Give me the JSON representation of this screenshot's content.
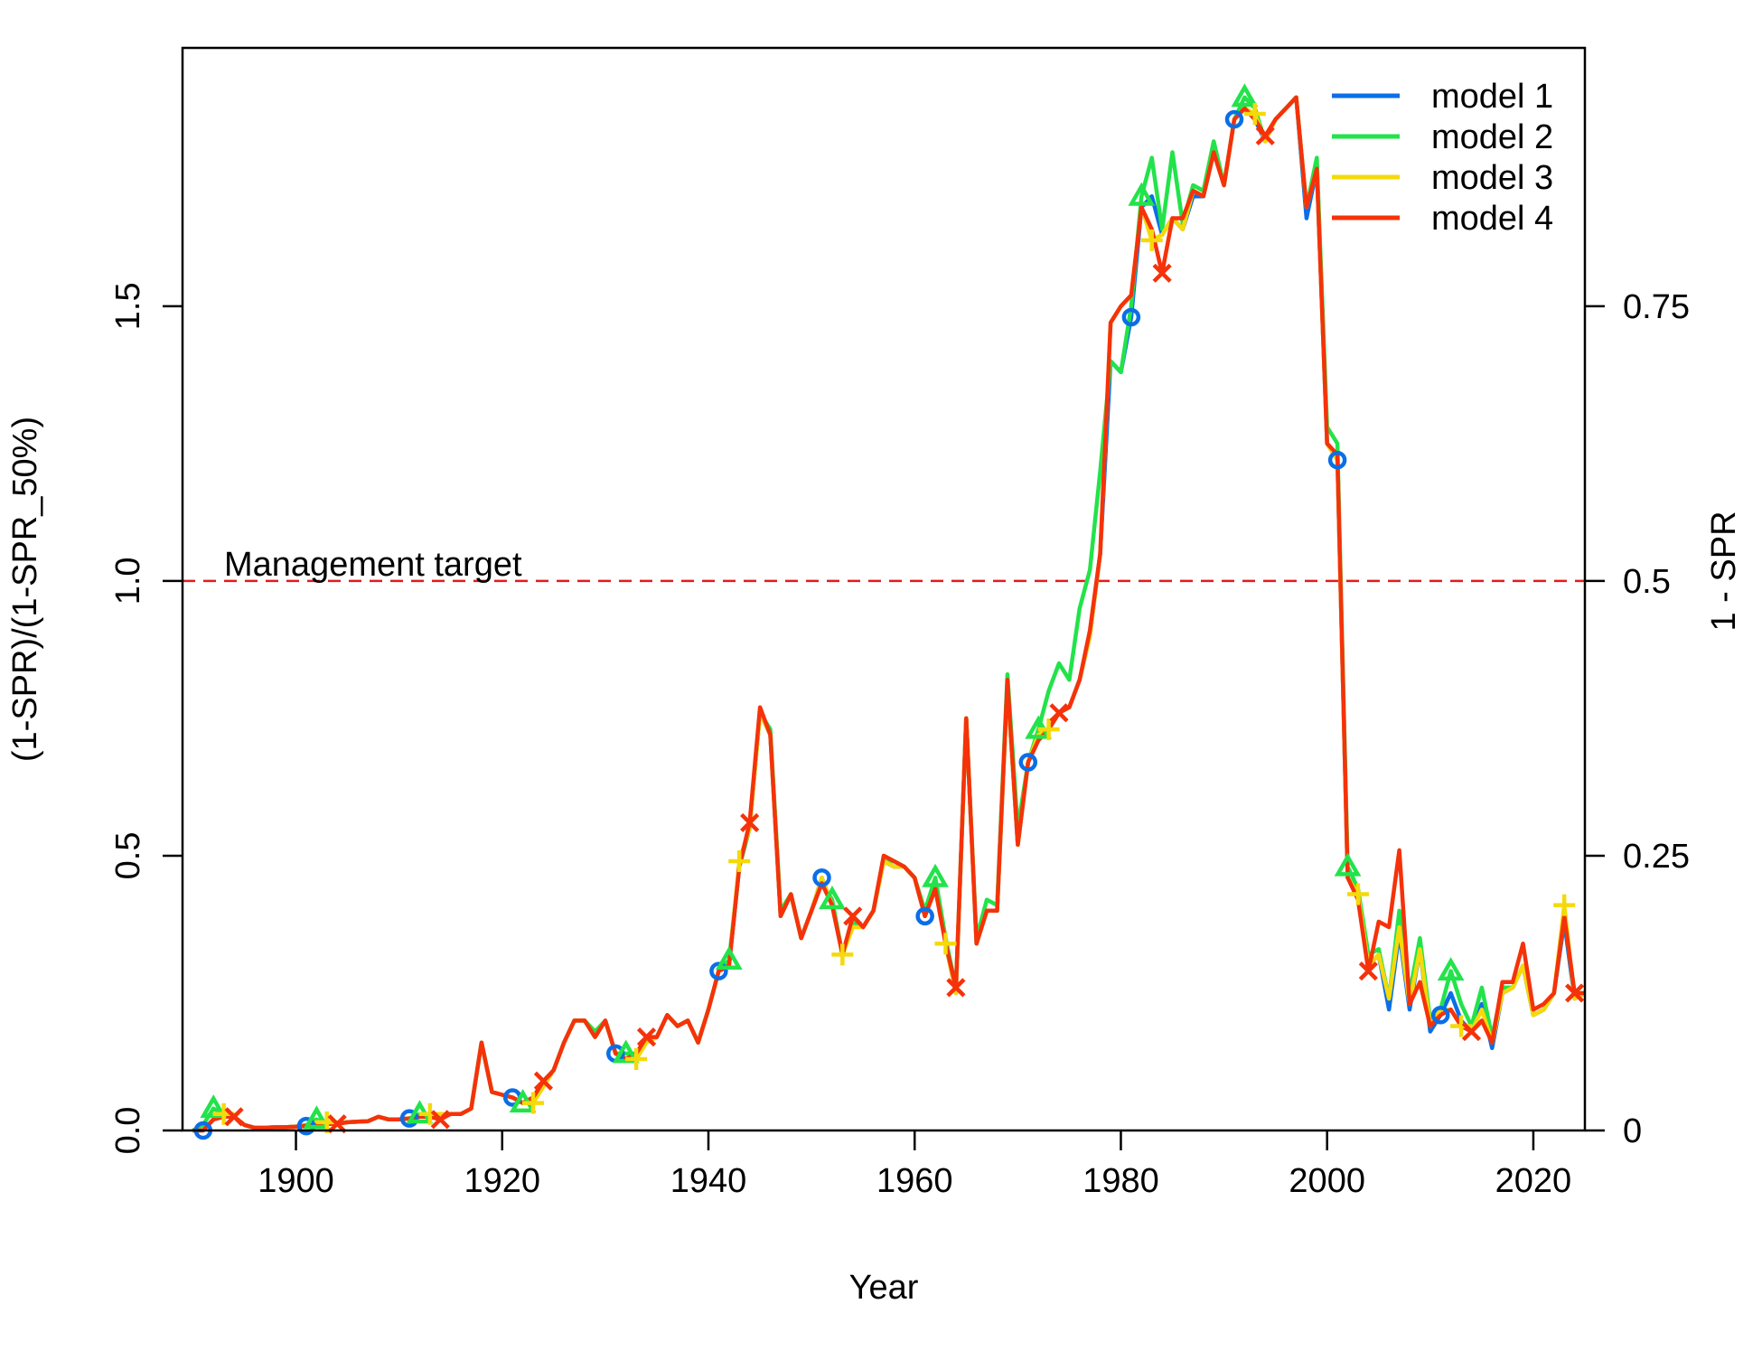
{
  "chart_data": {
    "type": "line",
    "xlabel": "Year",
    "ylabel": "(1-SPR)/(1-SPR_50%)",
    "ylabel_right": "1 - SPR",
    "xlim": [
      1889,
      2025
    ],
    "ylim": [
      0,
      1.97
    ],
    "x_ticks": [
      1900,
      1920,
      1940,
      1960,
      1980,
      2000,
      2020
    ],
    "y_ticks": [
      0.0,
      0.5,
      1.0,
      1.5
    ],
    "y_tick_labels": [
      "0.0",
      "0.5",
      "1.0",
      "1.5"
    ],
    "y_right_ticks": [
      0,
      0.25,
      0.5,
      0.75
    ],
    "y_right_tick_labels": [
      "0",
      "0.25",
      "0.5",
      "0.75"
    ],
    "y_right_scale": 0.5,
    "grid": false,
    "legend_position": "top-right",
    "reference_line": {
      "y": 1.0,
      "label": "Management target",
      "color": "#e31a1c",
      "style": "dashed"
    },
    "years": [
      1890,
      1891,
      1892,
      1893,
      1894,
      1895,
      1896,
      1897,
      1898,
      1899,
      1900,
      1901,
      1902,
      1903,
      1904,
      1905,
      1906,
      1907,
      1908,
      1909,
      1910,
      1911,
      1912,
      1913,
      1914,
      1915,
      1916,
      1917,
      1918,
      1919,
      1920,
      1921,
      1922,
      1923,
      1924,
      1925,
      1926,
      1927,
      1928,
      1929,
      1930,
      1931,
      1932,
      1933,
      1934,
      1935,
      1936,
      1937,
      1938,
      1939,
      1940,
      1941,
      1942,
      1943,
      1944,
      1945,
      1946,
      1947,
      1948,
      1949,
      1950,
      1951,
      1952,
      1953,
      1954,
      1955,
      1956,
      1957,
      1958,
      1959,
      1960,
      1961,
      1962,
      1963,
      1964,
      1965,
      1966,
      1967,
      1968,
      1969,
      1970,
      1971,
      1972,
      1973,
      1974,
      1975,
      1976,
      1977,
      1978,
      1979,
      1980,
      1981,
      1982,
      1983,
      1984,
      1985,
      1986,
      1987,
      1988,
      1989,
      1990,
      1991,
      1992,
      1993,
      1994,
      1995,
      1996,
      1997,
      1998,
      1999,
      2000,
      2001,
      2002,
      2003,
      2004,
      2005,
      2006,
      2007,
      2008,
      2009,
      2010,
      2011,
      2012,
      2013,
      2014,
      2015,
      2016,
      2017,
      2018,
      2019,
      2020,
      2021,
      2022,
      2023,
      2024,
      2025
    ],
    "series": [
      {
        "name": "model 1",
        "color": "#0b6ee8",
        "marker": "circle",
        "values": [
          0.0,
          0.0,
          0.02,
          0.025,
          0.025,
          0.01,
          0.005,
          0.005,
          0.006,
          0.006,
          0.007,
          0.008,
          0.01,
          0.012,
          0.013,
          0.015,
          0.016,
          0.017,
          0.025,
          0.02,
          0.02,
          0.022,
          0.025,
          0.03,
          0.03,
          0.03,
          0.03,
          0.04,
          0.16,
          0.07,
          0.065,
          0.06,
          0.05,
          0.06,
          0.085,
          0.11,
          0.16,
          0.2,
          0.2,
          0.17,
          0.2,
          0.14,
          0.13,
          0.14,
          0.16,
          0.17,
          0.21,
          0.19,
          0.2,
          0.16,
          0.22,
          0.29,
          0.3,
          0.48,
          0.55,
          0.76,
          0.72,
          0.39,
          0.43,
          0.35,
          0.4,
          0.46,
          0.41,
          0.32,
          0.38,
          0.37,
          0.4,
          0.49,
          0.48,
          0.48,
          0.46,
          0.39,
          0.44,
          0.34,
          0.25,
          0.75,
          0.34,
          0.4,
          0.4,
          0.81,
          0.52,
          0.67,
          0.71,
          0.73,
          0.76,
          0.77,
          0.82,
          0.9,
          1.05,
          1.4,
          1.38,
          1.48,
          1.68,
          1.7,
          1.63,
          1.66,
          1.64,
          1.7,
          1.7,
          1.78,
          1.72,
          1.84,
          1.86,
          1.84,
          1.8,
          1.84,
          1.86,
          1.88,
          1.66,
          1.75,
          1.25,
          1.22,
          0.46,
          0.43,
          0.3,
          0.32,
          0.22,
          0.36,
          0.22,
          0.33,
          0.18,
          0.21,
          0.25,
          0.2,
          0.18,
          0.23,
          0.15,
          0.25,
          0.26,
          0.3,
          0.21,
          0.22,
          0.25,
          0.38,
          0.24,
          0.25
        ]
      },
      {
        "name": "model 2",
        "color": "#22e34a",
        "marker": "triangle",
        "values": [
          0.0,
          0.01,
          0.04,
          0.03,
          0.025,
          0.01,
          0.005,
          0.005,
          0.006,
          0.006,
          0.007,
          0.01,
          0.02,
          0.012,
          0.013,
          0.015,
          0.016,
          0.017,
          0.025,
          0.02,
          0.02,
          0.022,
          0.03,
          0.03,
          0.03,
          0.03,
          0.03,
          0.04,
          0.16,
          0.07,
          0.065,
          0.06,
          0.05,
          0.06,
          0.085,
          0.11,
          0.16,
          0.2,
          0.2,
          0.18,
          0.2,
          0.14,
          0.14,
          0.14,
          0.16,
          0.17,
          0.21,
          0.19,
          0.2,
          0.16,
          0.22,
          0.29,
          0.31,
          0.48,
          0.55,
          0.76,
          0.73,
          0.4,
          0.43,
          0.35,
          0.4,
          0.45,
          0.42,
          0.32,
          0.38,
          0.37,
          0.4,
          0.49,
          0.49,
          0.48,
          0.46,
          0.4,
          0.46,
          0.35,
          0.26,
          0.75,
          0.35,
          0.42,
          0.41,
          0.83,
          0.55,
          0.67,
          0.73,
          0.8,
          0.85,
          0.82,
          0.95,
          1.02,
          1.2,
          1.4,
          1.38,
          1.5,
          1.7,
          1.77,
          1.64,
          1.78,
          1.65,
          1.72,
          1.71,
          1.8,
          1.72,
          1.84,
          1.88,
          1.86,
          1.8,
          1.84,
          1.86,
          1.88,
          1.68,
          1.77,
          1.28,
          1.25,
          0.48,
          0.44,
          0.32,
          0.33,
          0.24,
          0.4,
          0.25,
          0.35,
          0.2,
          0.22,
          0.29,
          0.23,
          0.19,
          0.26,
          0.17,
          0.26,
          0.26,
          0.3,
          0.21,
          0.22,
          0.25,
          0.39,
          0.25,
          0.25
        ]
      },
      {
        "name": "model 3",
        "color": "#f5d90a",
        "marker": "plus",
        "values": [
          0.0,
          0.0,
          0.02,
          0.03,
          0.025,
          0.01,
          0.005,
          0.005,
          0.006,
          0.006,
          0.007,
          0.008,
          0.015,
          0.015,
          0.013,
          0.015,
          0.016,
          0.017,
          0.025,
          0.02,
          0.02,
          0.022,
          0.025,
          0.03,
          0.03,
          0.03,
          0.03,
          0.04,
          0.16,
          0.07,
          0.065,
          0.06,
          0.05,
          0.05,
          0.08,
          0.11,
          0.16,
          0.2,
          0.2,
          0.17,
          0.2,
          0.14,
          0.13,
          0.13,
          0.16,
          0.17,
          0.21,
          0.19,
          0.2,
          0.16,
          0.22,
          0.29,
          0.3,
          0.49,
          0.55,
          0.76,
          0.72,
          0.39,
          0.43,
          0.35,
          0.4,
          0.46,
          0.41,
          0.32,
          0.37,
          0.37,
          0.4,
          0.49,
          0.48,
          0.48,
          0.46,
          0.39,
          0.44,
          0.34,
          0.25,
          0.75,
          0.34,
          0.4,
          0.4,
          0.81,
          0.52,
          0.67,
          0.72,
          0.73,
          0.76,
          0.77,
          0.82,
          0.9,
          1.05,
          1.47,
          1.5,
          1.52,
          1.68,
          1.62,
          1.63,
          1.66,
          1.64,
          1.71,
          1.7,
          1.78,
          1.72,
          1.84,
          1.86,
          1.85,
          1.8,
          1.84,
          1.86,
          1.88,
          1.68,
          1.75,
          1.25,
          1.22,
          0.46,
          0.43,
          0.3,
          0.32,
          0.24,
          0.37,
          0.23,
          0.33,
          0.19,
          0.22,
          0.22,
          0.19,
          0.18,
          0.22,
          0.16,
          0.25,
          0.26,
          0.3,
          0.21,
          0.22,
          0.25,
          0.41,
          0.24,
          0.25
        ]
      },
      {
        "name": "model 4",
        "color": "#f5320a",
        "marker": "x",
        "values": [
          0.0,
          0.0,
          0.02,
          0.025,
          0.025,
          0.01,
          0.005,
          0.005,
          0.006,
          0.006,
          0.007,
          0.008,
          0.01,
          0.012,
          0.012,
          0.015,
          0.016,
          0.017,
          0.025,
          0.02,
          0.02,
          0.022,
          0.025,
          0.025,
          0.02,
          0.03,
          0.03,
          0.04,
          0.16,
          0.07,
          0.065,
          0.06,
          0.05,
          0.06,
          0.09,
          0.11,
          0.16,
          0.2,
          0.2,
          0.17,
          0.2,
          0.14,
          0.13,
          0.14,
          0.17,
          0.17,
          0.21,
          0.19,
          0.2,
          0.16,
          0.22,
          0.29,
          0.3,
          0.48,
          0.56,
          0.77,
          0.72,
          0.39,
          0.43,
          0.35,
          0.4,
          0.45,
          0.41,
          0.32,
          0.39,
          0.37,
          0.4,
          0.5,
          0.49,
          0.48,
          0.46,
          0.39,
          0.44,
          0.34,
          0.26,
          0.75,
          0.34,
          0.4,
          0.4,
          0.82,
          0.52,
          0.67,
          0.71,
          0.73,
          0.76,
          0.77,
          0.82,
          0.91,
          1.05,
          1.47,
          1.5,
          1.52,
          1.68,
          1.64,
          1.56,
          1.66,
          1.66,
          1.71,
          1.7,
          1.78,
          1.72,
          1.84,
          1.86,
          1.84,
          1.81,
          1.84,
          1.86,
          1.88,
          1.68,
          1.75,
          1.25,
          1.23,
          0.46,
          0.42,
          0.29,
          0.38,
          0.37,
          0.51,
          0.23,
          0.27,
          0.19,
          0.21,
          0.22,
          0.19,
          0.18,
          0.2,
          0.16,
          0.27,
          0.27,
          0.34,
          0.22,
          0.23,
          0.25,
          0.39,
          0.25,
          0.25
        ]
      }
    ],
    "marker_years": {
      "model 1": [
        1891,
        1901,
        1911,
        1921,
        1931,
        1941,
        1951,
        1961,
        1971,
        1981,
        1991,
        2001,
        2011
      ],
      "model 2": [
        1892,
        1902,
        1912,
        1922,
        1932,
        1942,
        1952,
        1962,
        1972,
        1982,
        1992,
        2002,
        2012
      ],
      "model 3": [
        1893,
        1903,
        1913,
        1923,
        1933,
        1943,
        1953,
        1963,
        1973,
        1983,
        1993,
        2003,
        2013,
        2023
      ],
      "model 4": [
        1894,
        1904,
        1914,
        1924,
        1934,
        1944,
        1954,
        1964,
        1974,
        1984,
        1994,
        2004,
        2014,
        2024
      ]
    }
  }
}
